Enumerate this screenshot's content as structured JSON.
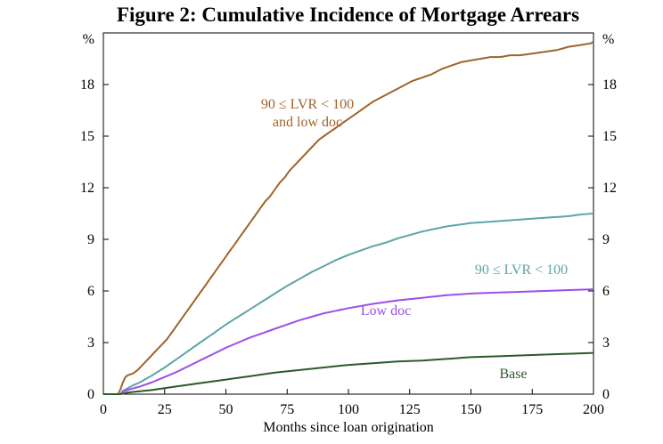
{
  "chart_data": {
    "type": "line",
    "title": "Figure 2: Cumulative Incidence of Mortgage Arrears",
    "xlabel": "Months since loan origination",
    "ylabel": "%",
    "ylabel_right": "%",
    "xlim": [
      0,
      200
    ],
    "ylim": [
      0,
      21
    ],
    "xticks": [
      0,
      25,
      50,
      75,
      100,
      125,
      150,
      175,
      200
    ],
    "yticks": [
      0,
      3,
      6,
      9,
      12,
      15,
      18
    ],
    "grid": false,
    "legend": "inline labels",
    "series": [
      {
        "name": "90 ≤ LVR < 100 and low doc",
        "label_lines": [
          "90 ≤ LVR < 100",
          "and low doc"
        ],
        "color": "#a0632a",
        "x": [
          0,
          6,
          7,
          8,
          9,
          10,
          12,
          14,
          16,
          18,
          20,
          22,
          24,
          26,
          28,
          30,
          32,
          34,
          36,
          38,
          40,
          42,
          44,
          46,
          48,
          50,
          52,
          54,
          56,
          58,
          60,
          62,
          64,
          66,
          68,
          70,
          72,
          74,
          76,
          78,
          80,
          82,
          84,
          86,
          88,
          90,
          92,
          94,
          96,
          98,
          100,
          103,
          106,
          110,
          114,
          118,
          122,
          126,
          130,
          134,
          138,
          140,
          142,
          146,
          150,
          154,
          158,
          162,
          166,
          170,
          175,
          180,
          185,
          190,
          195,
          199,
          200
        ],
        "y": [
          0,
          0,
          0.3,
          0.7,
          1.0,
          1.1,
          1.2,
          1.4,
          1.7,
          2.0,
          2.3,
          2.6,
          2.9,
          3.2,
          3.6,
          4.0,
          4.4,
          4.8,
          5.2,
          5.6,
          6.0,
          6.4,
          6.8,
          7.2,
          7.6,
          8.0,
          8.4,
          8.8,
          9.2,
          9.6,
          10.0,
          10.4,
          10.8,
          11.2,
          11.5,
          11.9,
          12.3,
          12.6,
          13.0,
          13.3,
          13.6,
          13.9,
          14.2,
          14.5,
          14.8,
          15.0,
          15.2,
          15.4,
          15.6,
          15.8,
          16.0,
          16.3,
          16.6,
          17.0,
          17.3,
          17.6,
          17.9,
          18.2,
          18.4,
          18.6,
          18.9,
          19.0,
          19.1,
          19.3,
          19.4,
          19.5,
          19.6,
          19.6,
          19.7,
          19.7,
          19.8,
          19.9,
          20.0,
          20.2,
          20.3,
          20.4,
          20.5
        ]
      },
      {
        "name": "90 ≤ LVR < 100",
        "color": "#5ea3a8",
        "x": [
          0,
          7,
          8,
          10,
          12,
          15,
          20,
          25,
          30,
          35,
          40,
          45,
          50,
          55,
          60,
          65,
          70,
          75,
          80,
          85,
          90,
          95,
          100,
          105,
          110,
          115,
          120,
          125,
          130,
          135,
          140,
          145,
          150,
          155,
          160,
          165,
          170,
          175,
          180,
          185,
          190,
          195,
          200
        ],
        "y": [
          0,
          0,
          0.2,
          0.35,
          0.5,
          0.7,
          1.1,
          1.55,
          2.05,
          2.55,
          3.05,
          3.55,
          4.05,
          4.5,
          4.95,
          5.4,
          5.85,
          6.3,
          6.7,
          7.1,
          7.45,
          7.8,
          8.1,
          8.35,
          8.6,
          8.8,
          9.05,
          9.25,
          9.45,
          9.6,
          9.75,
          9.85,
          9.95,
          10.0,
          10.05,
          10.1,
          10.15,
          10.2,
          10.25,
          10.3,
          10.35,
          10.45,
          10.5
        ]
      },
      {
        "name": "Low doc",
        "color": "#9b4fe8",
        "x": [
          0,
          7,
          8,
          10,
          15,
          20,
          25,
          30,
          35,
          40,
          45,
          50,
          55,
          60,
          65,
          70,
          75,
          80,
          85,
          90,
          95,
          100,
          110,
          120,
          130,
          140,
          150,
          160,
          170,
          180,
          190,
          200
        ],
        "y": [
          0,
          0,
          0.15,
          0.25,
          0.45,
          0.7,
          1.0,
          1.3,
          1.65,
          2.0,
          2.35,
          2.7,
          3.0,
          3.3,
          3.55,
          3.8,
          4.05,
          4.3,
          4.5,
          4.7,
          4.85,
          5.0,
          5.25,
          5.45,
          5.6,
          5.75,
          5.85,
          5.9,
          5.95,
          6.0,
          6.05,
          6.1
        ]
      },
      {
        "name": "Base",
        "color": "#2a5a2a",
        "x": [
          0,
          7,
          10,
          20,
          30,
          40,
          50,
          60,
          70,
          80,
          90,
          100,
          110,
          120,
          130,
          140,
          150,
          160,
          170,
          180,
          190,
          200
        ],
        "y": [
          0,
          0,
          0.1,
          0.25,
          0.45,
          0.65,
          0.85,
          1.05,
          1.25,
          1.4,
          1.55,
          1.7,
          1.8,
          1.9,
          1.95,
          2.05,
          2.15,
          2.2,
          2.25,
          2.3,
          2.35,
          2.4
        ]
      }
    ]
  }
}
